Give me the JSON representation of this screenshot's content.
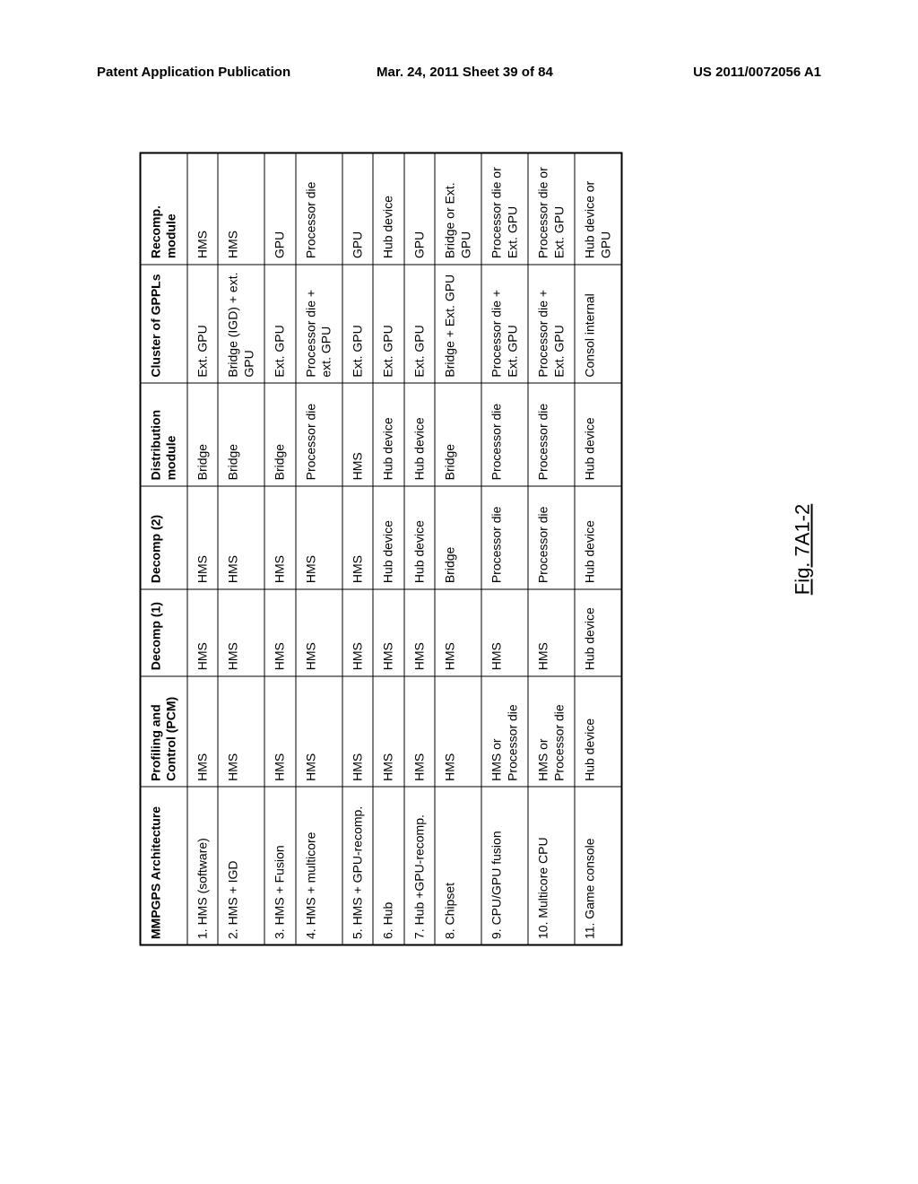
{
  "header": {
    "left": "Patent Application Publication",
    "center": "Mar. 24, 2011  Sheet 39 of 84",
    "right": "US 2011/0072056 A1"
  },
  "figure_label": "Fig. 7A1-2",
  "table": {
    "columns": [
      "MMPGPS Architecture",
      "Profiling and Control (PCM)",
      "Decomp (1)",
      "Decomp (2)",
      "Distribution module",
      "Cluster of GPPLs",
      "Recomp. module"
    ],
    "rows": [
      [
        "1. HMS (software)",
        "HMS",
        "HMS",
        "HMS",
        "Bridge",
        "Ext. GPU",
        "HMS"
      ],
      [
        "2. HMS + IGD",
        "HMS",
        "HMS",
        "HMS",
        "Bridge",
        "Bridge (IGD) + ext. GPU",
        "HMS"
      ],
      [
        "3. HMS + Fusion",
        "HMS",
        "HMS",
        "HMS",
        "Bridge",
        "Ext. GPU",
        "GPU"
      ],
      [
        "4. HMS + multicore",
        "HMS",
        "HMS",
        "HMS",
        "Processor die",
        "Processor die + ext. GPU",
        "Processor die"
      ],
      [
        "5. HMS + GPU-recomp.",
        "HMS",
        "HMS",
        "HMS",
        "HMS",
        "Ext. GPU",
        "GPU"
      ],
      [
        "6. Hub",
        "HMS",
        "HMS",
        "Hub device",
        "Hub device",
        "Ext. GPU",
        "Hub device"
      ],
      [
        "7. Hub +GPU-recomp.",
        "HMS",
        "HMS",
        "Hub device",
        "Hub device",
        "Ext. GPU",
        "GPU"
      ],
      [
        "8. Chipset",
        "HMS",
        "HMS",
        "Bridge",
        "Bridge",
        "Bridge + Ext. GPU",
        "Bridge or Ext. GPU"
      ],
      [
        "9. CPU/GPU fusion",
        "HMS or Processor die",
        "HMS",
        "Processor die",
        "Processor die",
        "Processor die + Ext. GPU",
        "Processor die or Ext. GPU"
      ],
      [
        "10. Multicore CPU",
        "HMS or Processor die",
        "HMS",
        "Processor die",
        "Processor die",
        "Processor die + Ext. GPU",
        "Processor die or Ext. GPU"
      ],
      [
        "11. Game console",
        "Hub device",
        "Hub device",
        "Hub device",
        "Hub device",
        "Consol internal",
        "Hub device or GPU"
      ]
    ]
  }
}
